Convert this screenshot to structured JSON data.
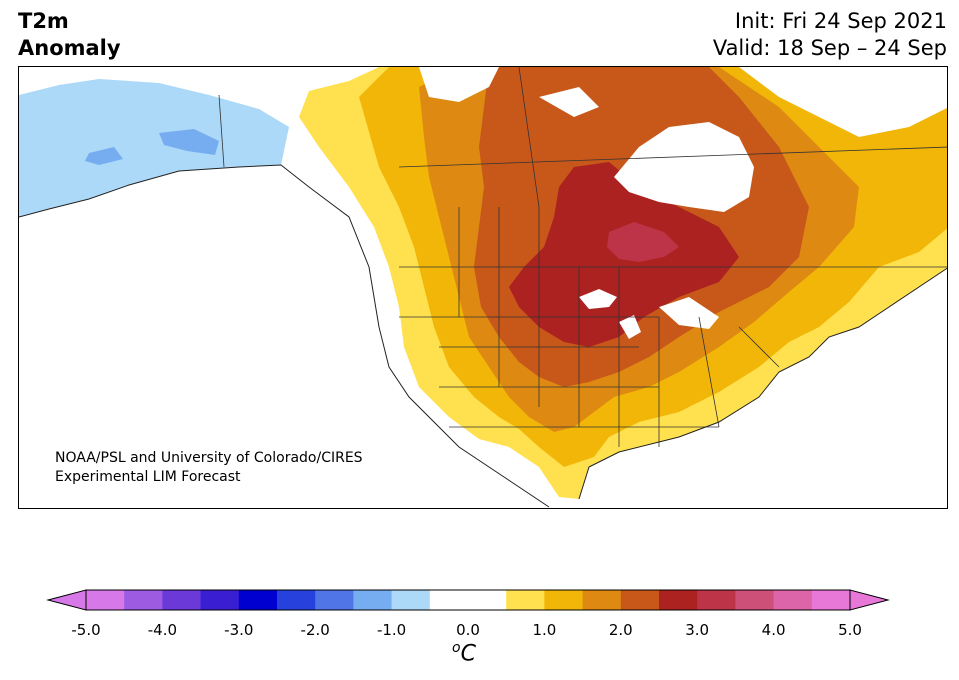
{
  "title": {
    "line1": "T2m",
    "line2": "Anomaly"
  },
  "run": {
    "init": "Init: Fri 24 Sep 2021",
    "valid": "Valid: 18 Sep – 24 Sep"
  },
  "credit": {
    "line1": "NOAA/PSL and University of Colorado/CIRES",
    "line2": "Experimental LIM Forecast"
  },
  "colorbar": {
    "unit_sup": "o",
    "unit": "C",
    "ticks": [
      "-5.0",
      "-4.0",
      "-3.0",
      "-2.0",
      "-1.0",
      "0.0",
      "1.0",
      "2.0",
      "3.0",
      "4.0",
      "5.0"
    ],
    "colors": [
      "#d778e8",
      "#9c5be0",
      "#6a39d8",
      "#3a1ed2",
      "#0000d0",
      "#2742dc",
      "#4f75e6",
      "#76adf0",
      "#acd9f8",
      "#ffffff",
      "#ffffff",
      "#ffe04e",
      "#f2b608",
      "#de8a12",
      "#c8571a",
      "#ab2220",
      "#bd3448",
      "#cc5078",
      "#dc64a8",
      "#e878d8"
    ],
    "min_color": "#d778e8",
    "max_color": "#e878d8"
  },
  "map": {
    "variable": "2 m temperature anomaly",
    "region": "North America",
    "max_anomaly_region": "Upper Midwest / Great Lakes / western Ontario",
    "cold_anomaly_region": "Alaska"
  }
}
